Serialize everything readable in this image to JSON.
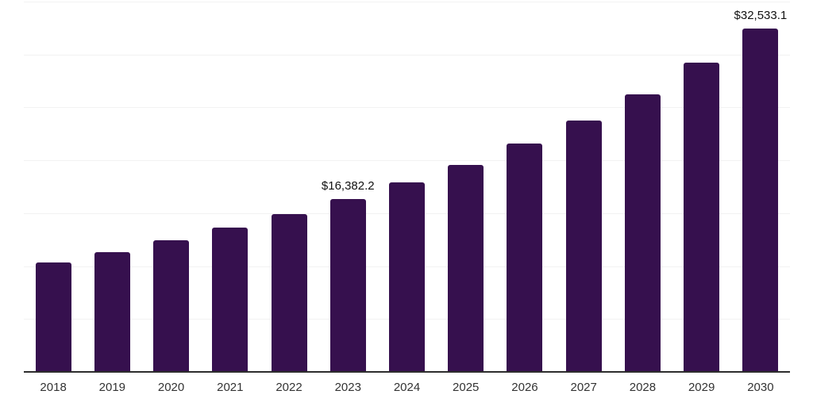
{
  "chart_data": {
    "type": "bar",
    "title": "",
    "xlabel": "",
    "ylabel": "",
    "categories": [
      "2018",
      "2019",
      "2020",
      "2021",
      "2022",
      "2023",
      "2024",
      "2025",
      "2026",
      "2027",
      "2028",
      "2029",
      "2030"
    ],
    "values": [
      10450,
      11365,
      12485,
      13680,
      15000,
      16382.2,
      17985,
      19650,
      21640,
      23830,
      26340,
      29275,
      32533.1
    ],
    "data_labels": {
      "2023": "$16,382.2",
      "2030": "$32,533.1"
    },
    "ylim": [
      0,
      35000
    ],
    "gridline_step": 5000,
    "grid": "horizontal-only",
    "legend": "none",
    "y_tick_labels_visible": false,
    "bar_color": "#36104e",
    "gridline_color": "#f2f2f2",
    "axis_line_color": "#2d2d2d",
    "tick_label_color": "#333333",
    "value_label_color": "#111111"
  }
}
